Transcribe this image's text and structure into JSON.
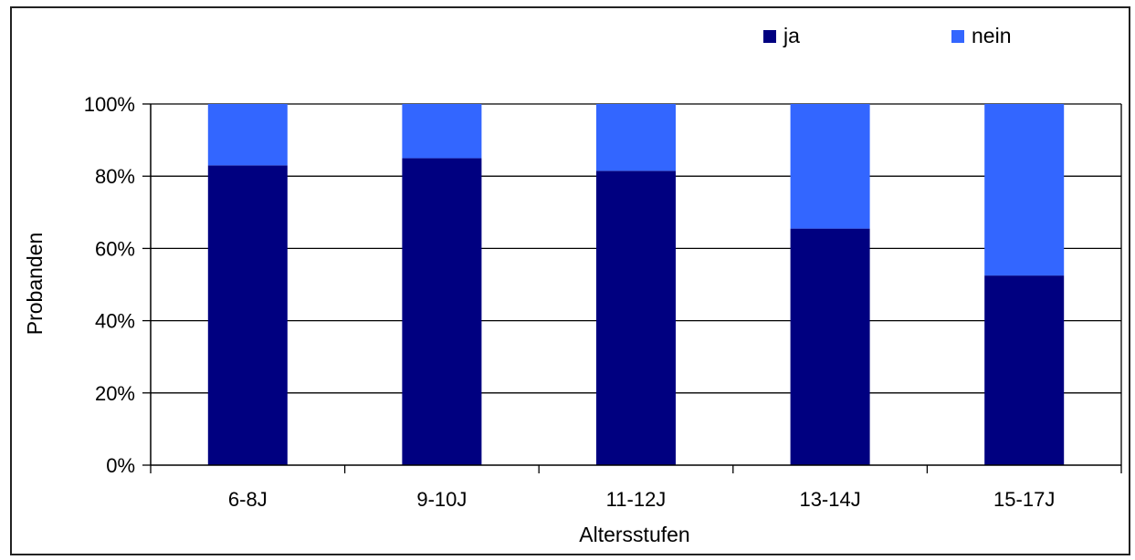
{
  "chart_data": {
    "type": "bar",
    "stacked": true,
    "percent_stacked": true,
    "categories": [
      "6-8J",
      "9-10J",
      "11-12J",
      "13-14J",
      "15-17J"
    ],
    "series": [
      {
        "name": "ja",
        "color": "#000080",
        "values": [
          83,
          85,
          81.5,
          65.5,
          52.5
        ]
      },
      {
        "name": "nein",
        "color": "#3366ff",
        "values": [
          17,
          15,
          18.5,
          34.5,
          47.5
        ]
      }
    ],
    "xlabel": "Altersstufen",
    "ylabel": "Probanden",
    "ylim": [
      0,
      100
    ],
    "yticks": [
      "0%",
      "20%",
      "40%",
      "60%",
      "80%",
      "100%"
    ],
    "grid": true,
    "legend_position": "top-right"
  }
}
